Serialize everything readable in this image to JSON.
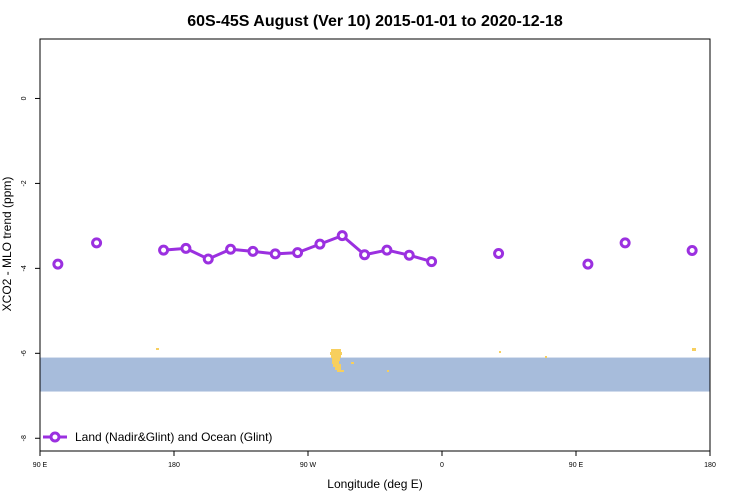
{
  "chart_data": {
    "type": "line",
    "title": "60S-45S August (Ver 10)   2015-01-01 to 2020-12-18",
    "xlabel": "Longitude (deg E)",
    "ylabel": "XCO2 - MLO trend (ppm)",
    "xlim": [
      90,
      540
    ],
    "ylim": [
      -8.3,
      1.4
    ],
    "x_ticks": [
      {
        "value": 90,
        "label": "90 E"
      },
      {
        "value": 180,
        "label": "180"
      },
      {
        "value": 270,
        "label": "90 W"
      },
      {
        "value": 360,
        "label": "0"
      },
      {
        "value": 450,
        "label": "90 E"
      },
      {
        "value": 540,
        "label": "180"
      }
    ],
    "y_ticks": [
      {
        "value": 0,
        "label": "0"
      },
      {
        "value": -2,
        "label": "-2"
      },
      {
        "value": -4,
        "label": "-4"
      },
      {
        "value": -6,
        "label": "-6"
      },
      {
        "value": -8,
        "label": "-8"
      }
    ],
    "band": {
      "from": -6.1,
      "to": -6.9,
      "color": "#a7bcdb",
      "land_color": "#f7cf5e"
    },
    "series": [
      {
        "name": "Land (Nadir&Glint) and Ocean (Glint)",
        "color": "#9b30e0",
        "segments": [
          [
            {
              "x": 102,
              "y": -3.9
            }
          ],
          [
            {
              "x": 128,
              "y": -3.4
            }
          ],
          [
            {
              "x": 173,
              "y": -3.57
            },
            {
              "x": 188,
              "y": -3.53
            },
            {
              "x": 203,
              "y": -3.78
            },
            {
              "x": 218,
              "y": -3.55
            },
            {
              "x": 233,
              "y": -3.6
            },
            {
              "x": 248,
              "y": -3.66
            },
            {
              "x": 263,
              "y": -3.63
            },
            {
              "x": 278,
              "y": -3.43
            },
            {
              "x": 293,
              "y": -3.23
            },
            {
              "x": 308,
              "y": -3.68
            },
            {
              "x": 323,
              "y": -3.57
            },
            {
              "x": 338,
              "y": -3.69
            },
            {
              "x": 353,
              "y": -3.84
            }
          ],
          [
            {
              "x": 398,
              "y": -3.65
            }
          ],
          [
            {
              "x": 458,
              "y": -3.9
            }
          ],
          [
            {
              "x": 483,
              "y": -3.4
            }
          ],
          [
            {
              "x": 528,
              "y": -3.58
            }
          ]
        ]
      }
    ],
    "legend": {
      "position": "bottom-left"
    }
  }
}
